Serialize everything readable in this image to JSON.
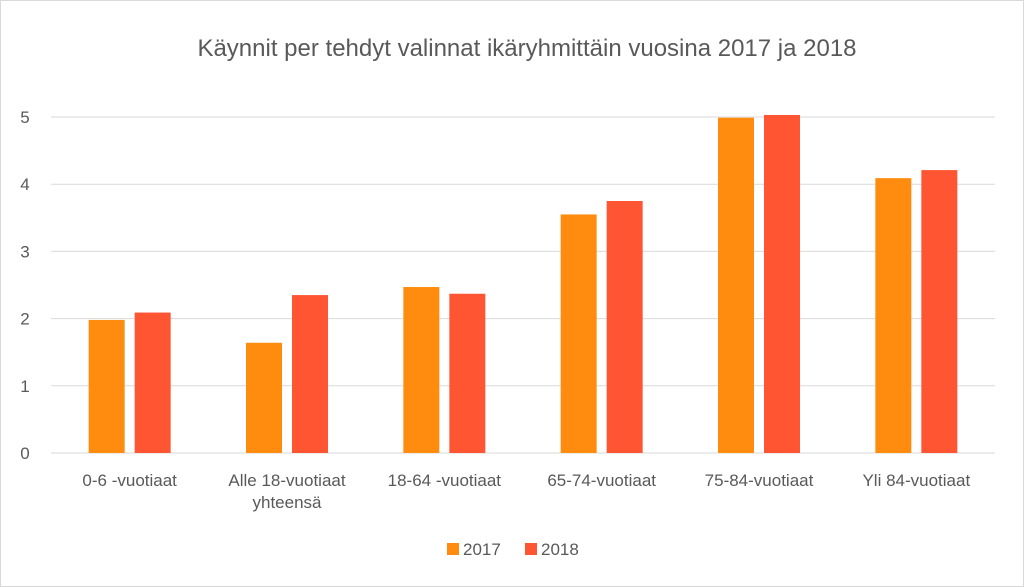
{
  "chart_data": {
    "type": "bar",
    "title": "Käynnit per tehdyt valinnat ikäryhmittäin vuosina 2017 ja 2018",
    "categories": [
      [
        "0-6 -vuotiaat"
      ],
      [
        "Alle 18-vuotiaat",
        "yhteensä"
      ],
      [
        "18-64 -vuotiaat"
      ],
      [
        "65-74-vuotiaat"
      ],
      [
        "75-84-vuotiaat"
      ],
      [
        "Yli 84-vuotiaat"
      ]
    ],
    "series": [
      {
        "name": "2017",
        "color": "#FF8C0F",
        "values": [
          1.98,
          1.64,
          2.47,
          3.55,
          4.99,
          4.09
        ]
      },
      {
        "name": "2018",
        "color": "#FF5533",
        "values": [
          2.09,
          2.35,
          2.37,
          3.75,
          5.03,
          4.21
        ]
      }
    ],
    "ylim": [
      0,
      5
    ],
    "yticks": [
      0,
      1,
      2,
      3,
      4,
      5
    ],
    "xlabel": "",
    "ylabel": "",
    "grid": true,
    "legend_position": "bottom"
  }
}
